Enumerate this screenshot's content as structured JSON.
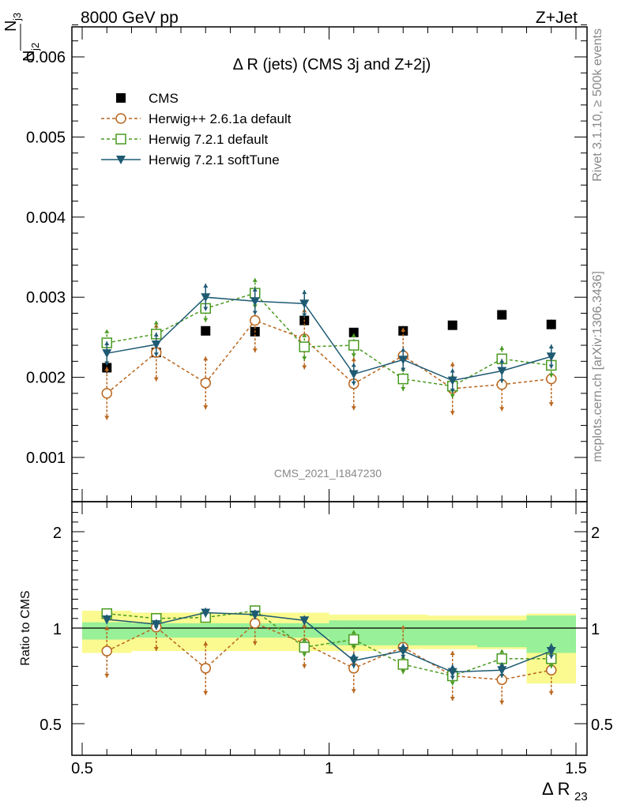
{
  "header": {
    "left": "8000 GeV pp",
    "right": "Z+Jet"
  },
  "side_labels": {
    "rivet": "Rivet 3.1.10, ≥ 500k events",
    "mcplots": "mcplots.cern.ch [arXiv:1306.3436]"
  },
  "watermark": "CMS_2021_I1847230",
  "chart_data": [
    {
      "type": "scatter",
      "title": "Δ R (jets) (CMS 3j and Z+2j)",
      "xlabel": "Δ R23",
      "ylabel": "Nj3/Nj2",
      "xlim": [
        0.5,
        1.5
      ],
      "ylim": [
        0.0005,
        0.0064
      ],
      "yticks": [
        "0.001",
        "0.002",
        "0.003",
        "0.004",
        "0.005",
        "0.006"
      ],
      "legend_position": "top-left",
      "x": [
        0.55,
        0.65,
        0.75,
        0.85,
        0.95,
        1.05,
        1.15,
        1.25,
        1.35,
        1.45
      ],
      "series": [
        {
          "name": "CMS",
          "color": "#000000",
          "marker": "square-filled",
          "values": [
            0.00212,
            0.00231,
            0.00258,
            0.00257,
            0.00271,
            0.00256,
            0.00258,
            0.00265,
            0.00278,
            0.00266
          ],
          "errors": [
            7e-05,
            6e-05,
            5e-05,
            5e-05,
            6e-05,
            5e-05,
            6e-05,
            5e-05,
            6e-05,
            6e-05
          ]
        },
        {
          "name": "Herwig++ 2.6.1a default",
          "color": "#b8661e",
          "marker": "circle-open",
          "line": "dashed",
          "values": [
            0.0018,
            0.00231,
            0.00193,
            0.00271,
            0.00248,
            0.00192,
            0.00227,
            0.00186,
            0.00191,
            0.00198
          ],
          "errors": [
            0.00033,
            0.00036,
            0.00033,
            0.0004,
            0.00038,
            0.00033,
            0.00035,
            0.00033,
            0.00033,
            0.00034
          ]
        },
        {
          "name": "Herwig 7.2.1 default",
          "color": "#4a9a22",
          "marker": "square-open",
          "line": "dashed",
          "values": [
            0.00243,
            0.00254,
            0.00286,
            0.00305,
            0.00238,
            0.0024,
            0.00198,
            0.00189,
            0.00223,
            0.00215
          ],
          "errors": [
            0.00017,
            0.00017,
            0.00017,
            0.00019,
            0.00017,
            0.00015,
            0.00015,
            0.00015,
            0.00016,
            0.00015
          ]
        },
        {
          "name": "Herwig 7.2.1 softTune",
          "color": "#1e5a72",
          "marker": "triangle-down-filled",
          "line": "solid",
          "values": [
            0.0023,
            0.00241,
            0.003,
            0.00295,
            0.00292,
            0.00204,
            0.00222,
            0.00196,
            0.00208,
            0.00226
          ],
          "errors": [
            0.00015,
            0.00015,
            0.00017,
            0.00017,
            0.00017,
            0.00014,
            0.00015,
            0.00015,
            0.00015,
            0.00015
          ]
        }
      ]
    },
    {
      "type": "scatter",
      "title": "",
      "xlabel": "Δ R23",
      "ylabel": "Ratio to CMS",
      "xlim": [
        0.5,
        1.5
      ],
      "ylim": [
        0.42,
        2.28
      ],
      "yticks": [
        "0.5",
        "1",
        "2"
      ],
      "xticks": [
        "0.5",
        "1",
        "1.5"
      ],
      "reference": 1,
      "bands": {
        "x_edges": [
          0.5,
          0.6,
          0.7,
          0.8,
          0.9,
          1.0,
          1.1,
          1.2,
          1.3,
          1.4,
          1.5
        ],
        "stat_low": [
          0.94,
          0.95,
          0.95,
          0.95,
          0.95,
          0.91,
          0.91,
          0.91,
          0.9,
          0.87
        ],
        "stat_high": [
          1.06,
          1.05,
          1.05,
          1.05,
          1.05,
          1.08,
          1.08,
          1.08,
          1.08,
          1.13
        ],
        "total_low": [
          0.87,
          0.88,
          0.88,
          0.88,
          0.88,
          0.88,
          0.89,
          0.89,
          0.89,
          0.71
        ],
        "total_high": [
          1.18,
          1.16,
          1.16,
          1.16,
          1.16,
          1.14,
          1.14,
          1.13,
          1.13,
          1.15
        ],
        "stat_color": "#98f098",
        "total_color": "#fafa90"
      },
      "x": [
        0.55,
        0.65,
        0.75,
        0.85,
        0.95,
        1.05,
        1.15,
        1.25,
        1.35,
        1.45
      ],
      "series": [
        {
          "name": "Herwig++ 2.6.1a default",
          "color": "#b8661e",
          "marker": "circle-open",
          "line": "dashed",
          "values": [
            0.88,
            1.01,
            0.79,
            1.05,
            0.92,
            0.79,
            0.9,
            0.75,
            0.73,
            0.78
          ],
          "errors": [
            0.14,
            0.13,
            0.14,
            0.14,
            0.13,
            0.13,
            0.13,
            0.13,
            0.13,
            0.13
          ]
        },
        {
          "name": "Herwig 7.2.1 default",
          "color": "#4a9a22",
          "marker": "square-open",
          "line": "dashed",
          "values": [
            1.15,
            1.1,
            1.11,
            1.18,
            0.9,
            0.94,
            0.81,
            0.75,
            0.84,
            0.84
          ],
          "errors": [
            0.05,
            0.05,
            0.05,
            0.06,
            0.05,
            0.05,
            0.05,
            0.05,
            0.05,
            0.05
          ]
        },
        {
          "name": "Herwig 7.2.1 softTune",
          "color": "#1e5a72",
          "marker": "triangle-down-filled",
          "line": "solid",
          "values": [
            1.09,
            1.04,
            1.16,
            1.14,
            1.08,
            0.83,
            0.88,
            0.77,
            0.78,
            0.88
          ],
          "errors": [
            0.05,
            0.05,
            0.05,
            0.05,
            0.05,
            0.04,
            0.04,
            0.04,
            0.04,
            0.04
          ]
        }
      ]
    }
  ]
}
